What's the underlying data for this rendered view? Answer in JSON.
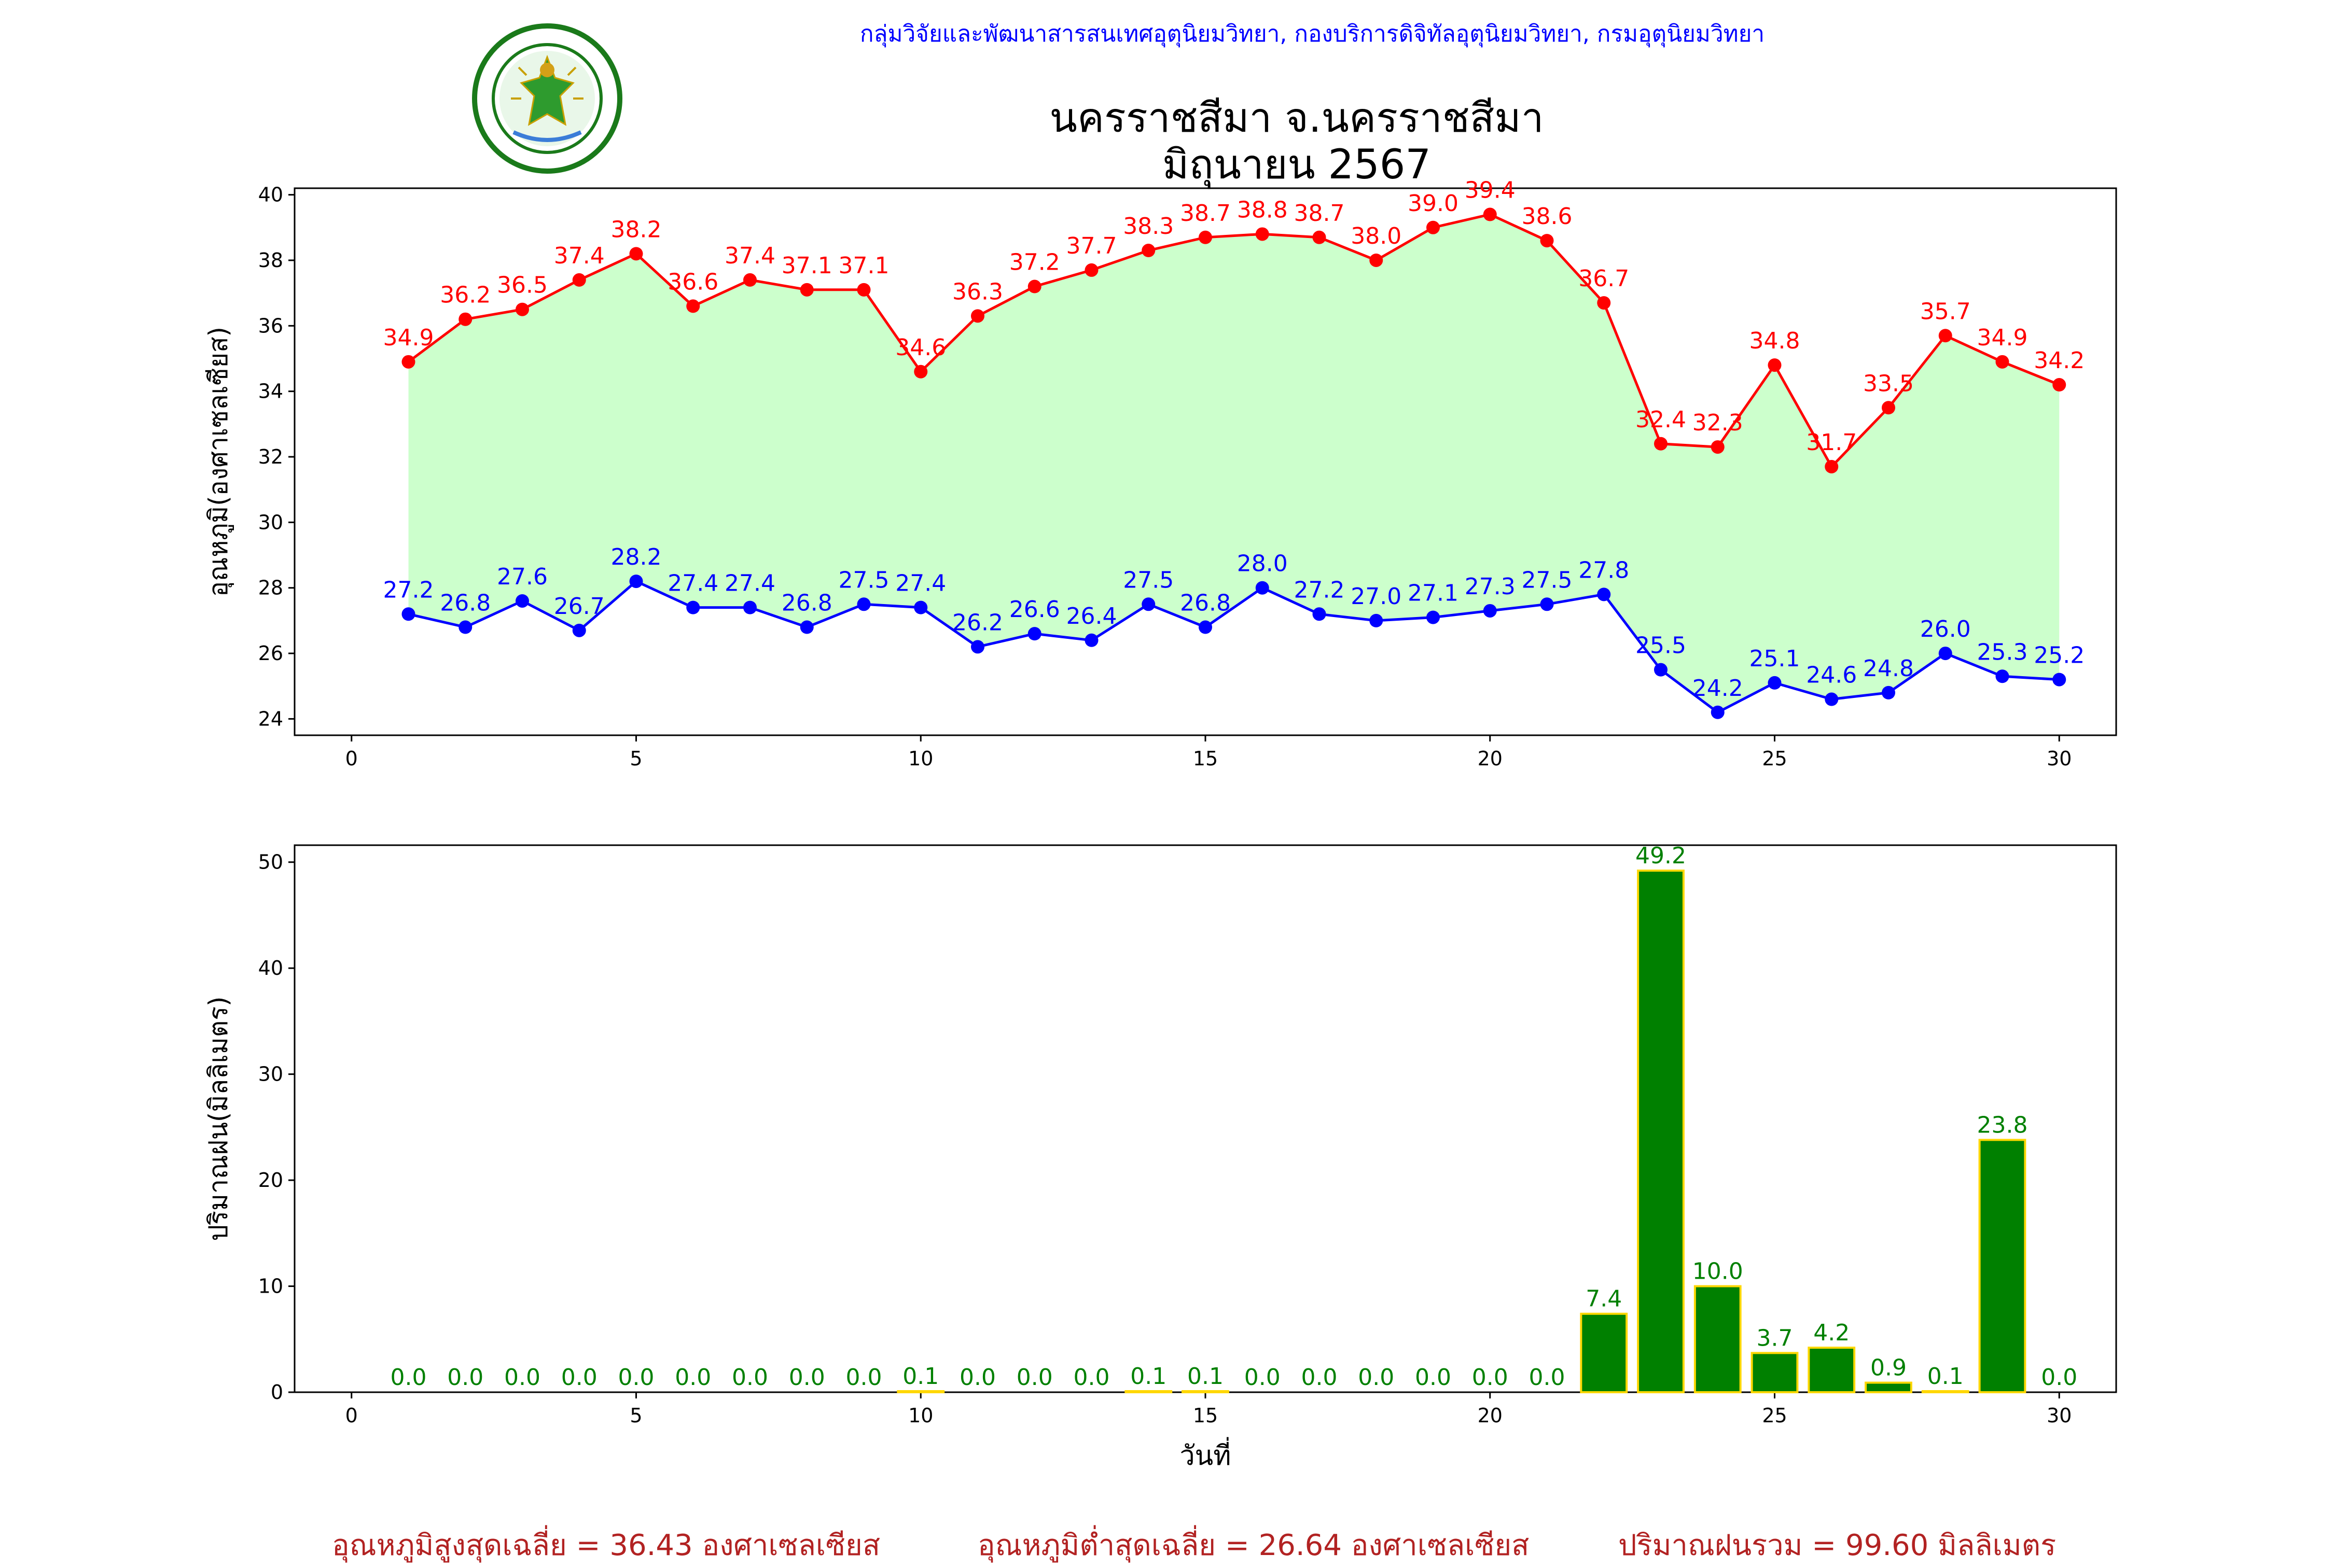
{
  "header": {
    "org_line": "กลุ่มวิจัยและพัฒนาสารสนเทศอุตุนิยมวิทยา, กองบริการดิจิทัลอุตุนิยมวิทยา, กรมอุตุนิยมวิทยา",
    "title_line1": "นครราชสีมา จ.นครราชสีมา",
    "title_line2": "มิถุนายน 2567",
    "logo_icon": "meteorological-department-seal"
  },
  "footer": {
    "avg_max": "อุณหภูมิสูงสุดเฉลี่ย = 36.43 องศาเซลเซียส",
    "avg_min": "อุณหภูมิต่ำสุดเฉลี่ย = 26.64 องศาเซลเซียส",
    "total_rain": "ปริมาณฝนรวม = 99.60 มิลลิเมตร"
  },
  "colors": {
    "max_line": "#ff0000",
    "min_line": "#0000ff",
    "fill": "#ccffcc",
    "rain_bar": "#008000",
    "rain_edge": "#ffd700",
    "rain_label": "#008000",
    "footer_text": "#b22222"
  },
  "chart_data": [
    {
      "type": "line",
      "ylabel": "อุณหภูมิ(องศาเซลเซียส)",
      "xlabel": "",
      "xlim": [
        -1,
        31
      ],
      "ylim": [
        23.5,
        40.2
      ],
      "xticks": [
        0,
        5,
        10,
        15,
        20,
        25,
        30
      ],
      "yticks": [
        24,
        26,
        28,
        30,
        32,
        34,
        36,
        38,
        40
      ],
      "fill_between": true,
      "grid": false,
      "x": [
        1,
        2,
        3,
        4,
        5,
        6,
        7,
        8,
        9,
        10,
        11,
        12,
        13,
        14,
        15,
        16,
        17,
        18,
        19,
        20,
        21,
        22,
        23,
        24,
        25,
        26,
        27,
        28,
        29,
        30
      ],
      "series": [
        {
          "values": [
            34.9,
            36.2,
            36.5,
            37.4,
            38.2,
            36.6,
            37.4,
            37.1,
            37.1,
            34.6,
            36.3,
            37.2,
            37.7,
            38.3,
            38.7,
            38.8,
            38.7,
            38.0,
            39.0,
            39.4,
            38.6,
            36.7,
            32.4,
            32.3,
            34.8,
            31.7,
            33.5,
            35.7,
            34.9,
            34.2
          ]
        },
        {
          "values": [
            27.2,
            26.8,
            27.6,
            26.7,
            28.2,
            27.4,
            27.4,
            26.8,
            27.5,
            27.4,
            26.2,
            26.6,
            26.4,
            27.5,
            26.8,
            28.0,
            27.2,
            27.0,
            27.1,
            27.3,
            27.5,
            27.8,
            25.5,
            24.2,
            25.1,
            24.6,
            24.8,
            26.0,
            25.3,
            25.2
          ]
        }
      ]
    },
    {
      "type": "bar",
      "ylabel": "ปริมาณฝน(มิลลิเมตร)",
      "xlabel": "วันที่",
      "xlim": [
        -1,
        31
      ],
      "ylim": [
        0,
        51.6
      ],
      "xticks": [
        0,
        5,
        10,
        15,
        20,
        25,
        30
      ],
      "yticks": [
        0,
        10,
        20,
        30,
        40,
        50
      ],
      "grid": false,
      "x": [
        1,
        2,
        3,
        4,
        5,
        6,
        7,
        8,
        9,
        10,
        11,
        12,
        13,
        14,
        15,
        16,
        17,
        18,
        19,
        20,
        21,
        22,
        23,
        24,
        25,
        26,
        27,
        28,
        29,
        30
      ],
      "values": [
        0.0,
        0.0,
        0.0,
        0.0,
        0.0,
        0.0,
        0.0,
        0.0,
        0.0,
        0.1,
        0.0,
        0.0,
        0.0,
        0.1,
        0.1,
        0.0,
        0.0,
        0.0,
        0.0,
        0.0,
        0.0,
        7.4,
        49.2,
        10.0,
        3.7,
        4.2,
        0.9,
        0.1,
        23.8,
        0.0
      ]
    }
  ]
}
